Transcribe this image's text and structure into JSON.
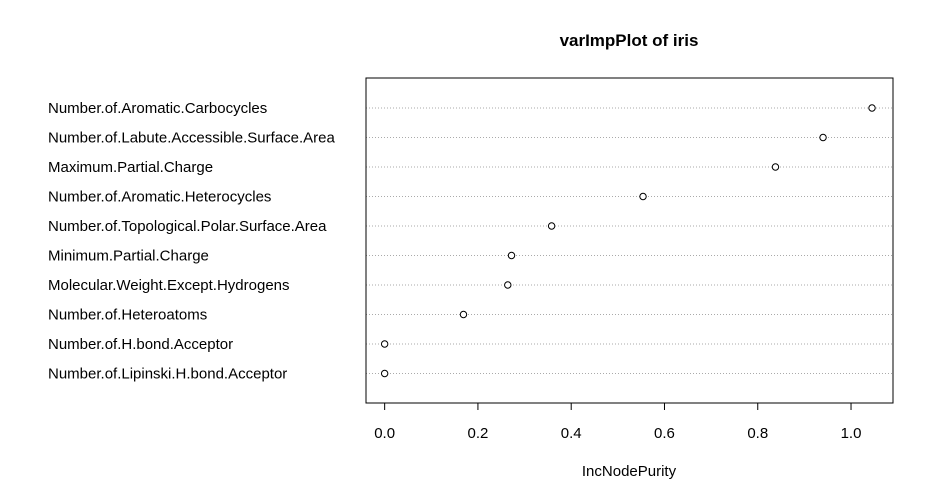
{
  "chart_data": {
    "type": "scatter",
    "title": "varImpPlot of iris",
    "xlabel": "IncNodePurity",
    "ylabel": "",
    "xlim": [
      -0.04,
      1.09
    ],
    "xticks": [
      0.0,
      0.2,
      0.4,
      0.6,
      0.8,
      1.0
    ],
    "xtick_labels": [
      "0.0",
      "0.2",
      "0.4",
      "0.6",
      "0.8",
      "1.0"
    ],
    "grid": "dotted horizontal lines per variable",
    "categories": [
      "Number.of.Aromatic.Carbocycles",
      "Number.of.Labute.Accessible.Surface.Area",
      "Maximum.Partial.Charge",
      "Number.of.Aromatic.Heterocycles",
      "Number.of.Topological.Polar.Surface.Area",
      "Minimum.Partial.Charge",
      "Molecular.Weight.Except.Hydrogens",
      "Number.of.Heteroatoms",
      "Number.of.H.bond.Acceptor",
      "Number.of.Lipinski.H.bond.Acceptor"
    ],
    "values": [
      1.045,
      0.94,
      0.838,
      0.554,
      0.358,
      0.272,
      0.264,
      0.169,
      0.0,
      0.0
    ]
  }
}
